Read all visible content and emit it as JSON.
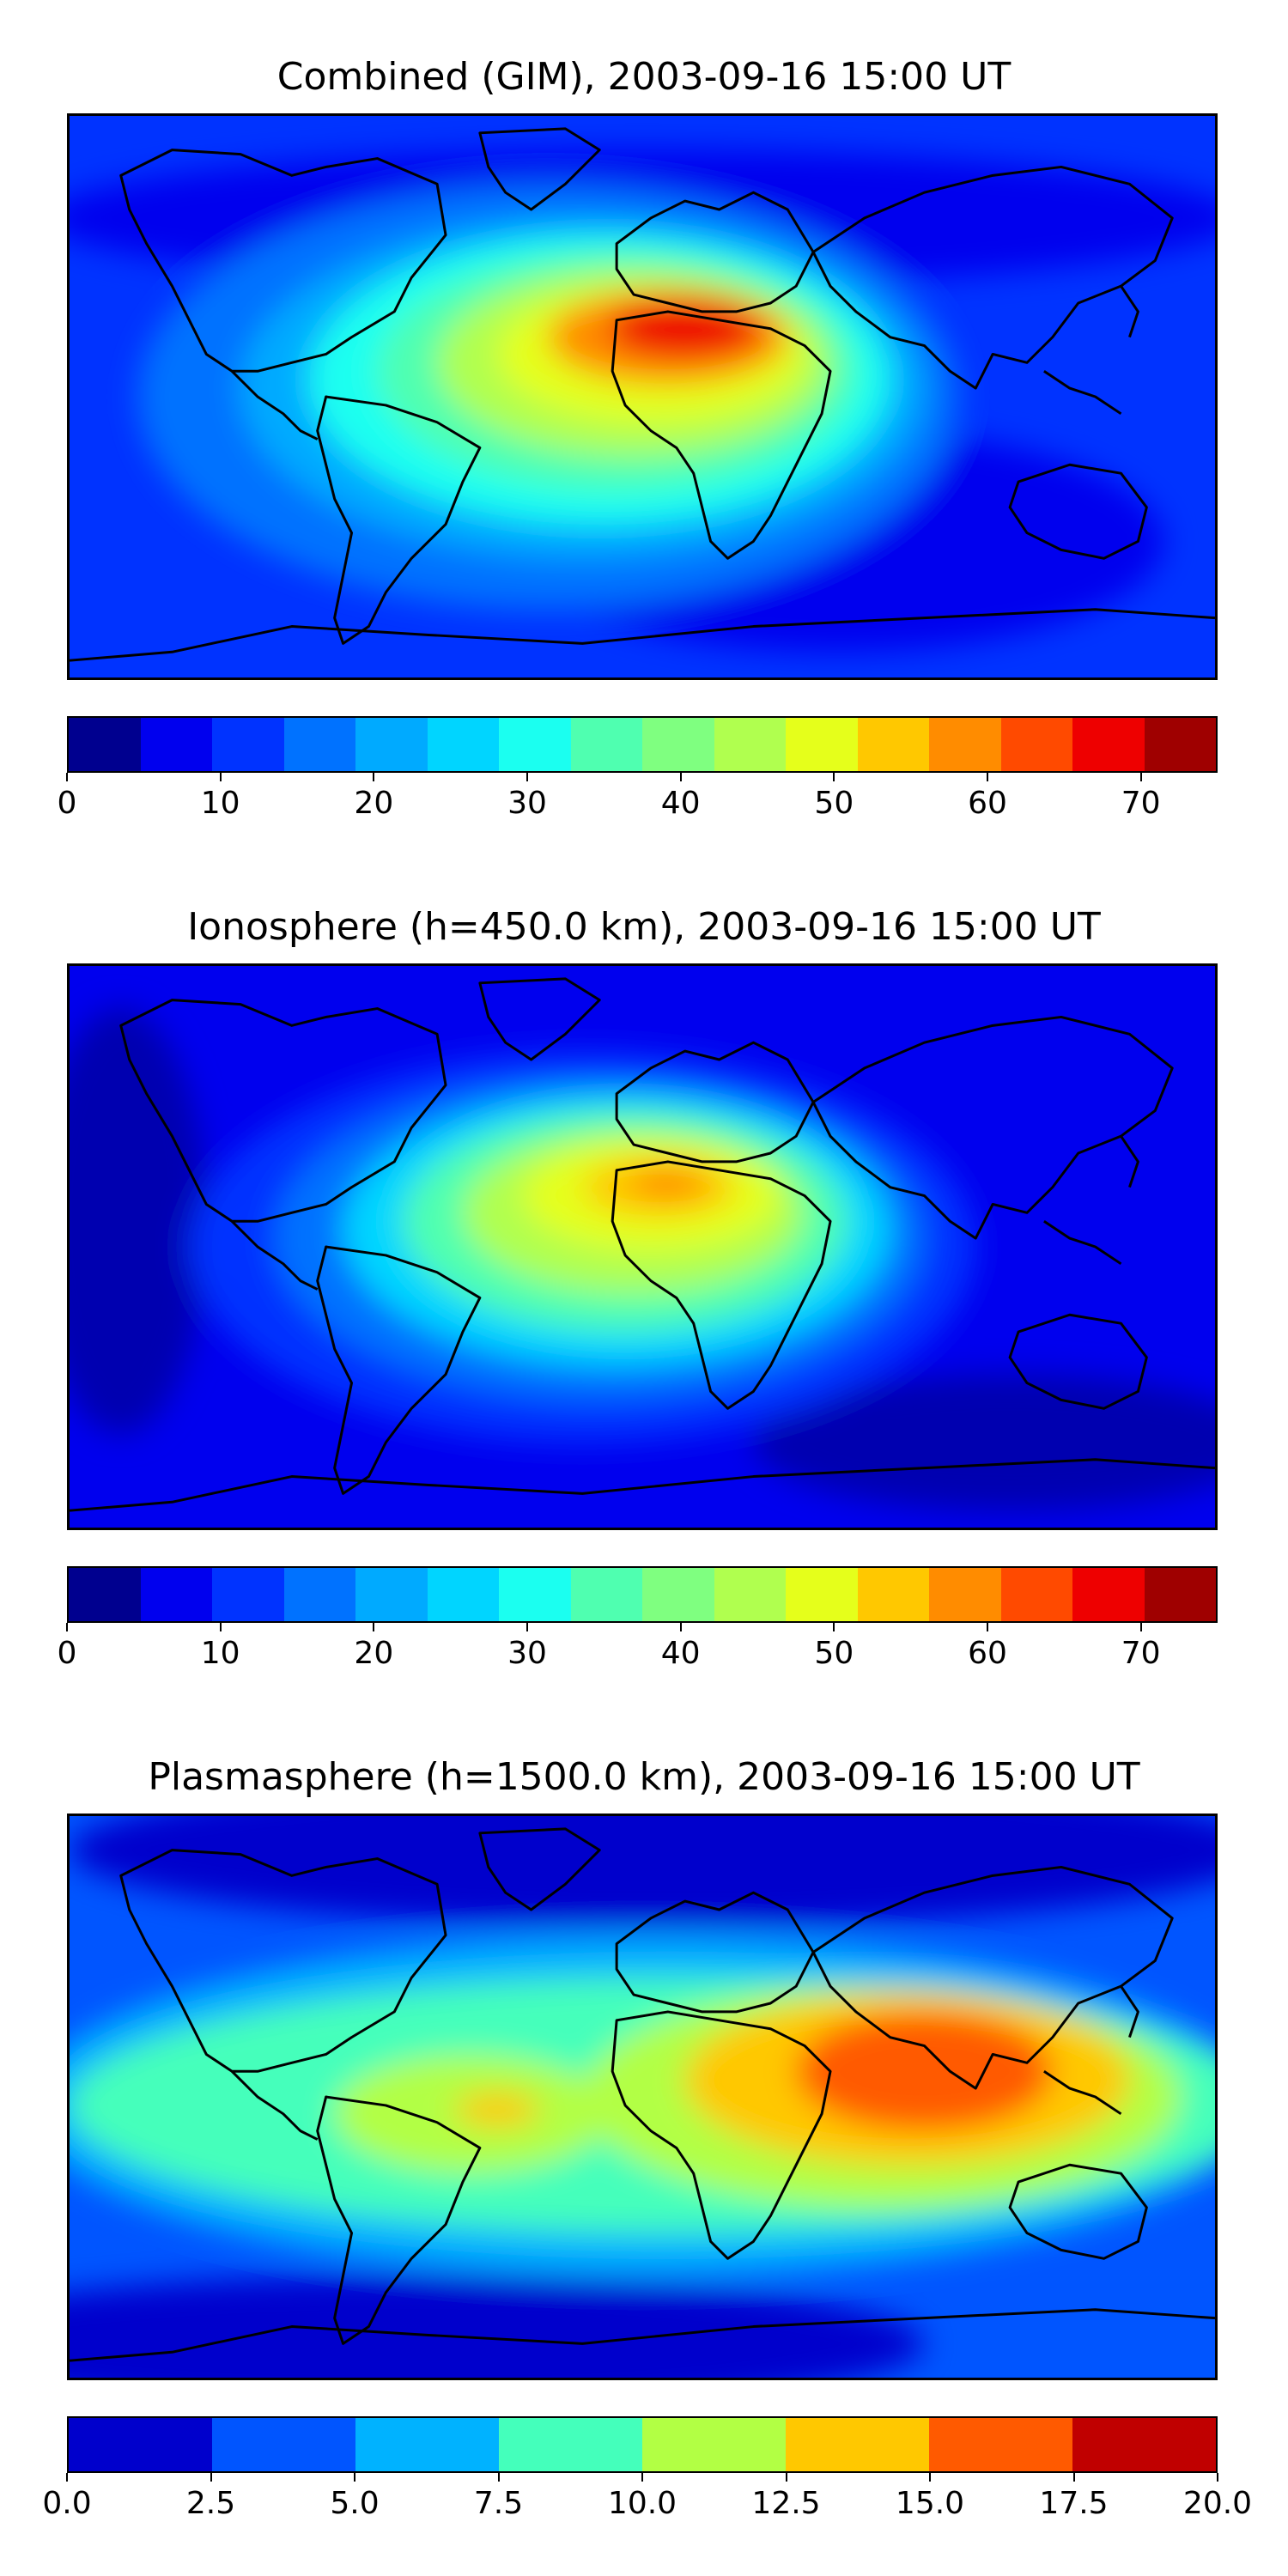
{
  "panels": [
    {
      "title": "Combined (GIM), 2003-09-16 15:00 UT",
      "colorbar": {
        "min": 0,
        "max": 75,
        "step": 5,
        "colors": [
          "#00008f",
          "#0000ee",
          "#0033ff",
          "#0072ff",
          "#00aaff",
          "#00d5ff",
          "#1bfff0",
          "#4fffb0",
          "#7fff80",
          "#b0ff4f",
          "#e5ff1b",
          "#ffc800",
          "#ff8c00",
          "#ff4a00",
          "#ee0000",
          "#9f0000"
        ],
        "tick_labels": [
          "0",
          "10",
          "20",
          "30",
          "40",
          "50",
          "60",
          "70"
        ],
        "tick_values": [
          0,
          10,
          20,
          30,
          40,
          50,
          60,
          70
        ]
      }
    },
    {
      "title": "Ionosphere  (h=450.0 km), 2003-09-16 15:00 UT",
      "colorbar": {
        "min": 0,
        "max": 75,
        "step": 5,
        "colors": [
          "#00008f",
          "#0000ee",
          "#0033ff",
          "#0072ff",
          "#00aaff",
          "#00d5ff",
          "#1bfff0",
          "#4fffb0",
          "#7fff80",
          "#b0ff4f",
          "#e5ff1b",
          "#ffc800",
          "#ff8c00",
          "#ff4a00",
          "#ee0000",
          "#9f0000"
        ],
        "tick_labels": [
          "0",
          "10",
          "20",
          "30",
          "40",
          "50",
          "60",
          "70"
        ],
        "tick_values": [
          0,
          10,
          20,
          30,
          40,
          50,
          60,
          70
        ]
      }
    },
    {
      "title": "Plasmasphere (h=1500.0 km), 2003-09-16 15:00 UT",
      "colorbar": {
        "min": 0,
        "max": 20,
        "step": 2.5,
        "colors": [
          "#0000cc",
          "#0055ff",
          "#00b2ff",
          "#44ffbb",
          "#b2ff44",
          "#ffc800",
          "#ff5a00",
          "#c00000"
        ],
        "tick_labels": [
          "0.0",
          "2.5",
          "5.0",
          "7.5",
          "10.0",
          "12.5",
          "15.0",
          "17.5",
          "20.0"
        ],
        "tick_values": [
          0,
          2.5,
          5,
          7.5,
          10,
          12.5,
          15,
          17.5,
          20
        ]
      }
    }
  ]
}
